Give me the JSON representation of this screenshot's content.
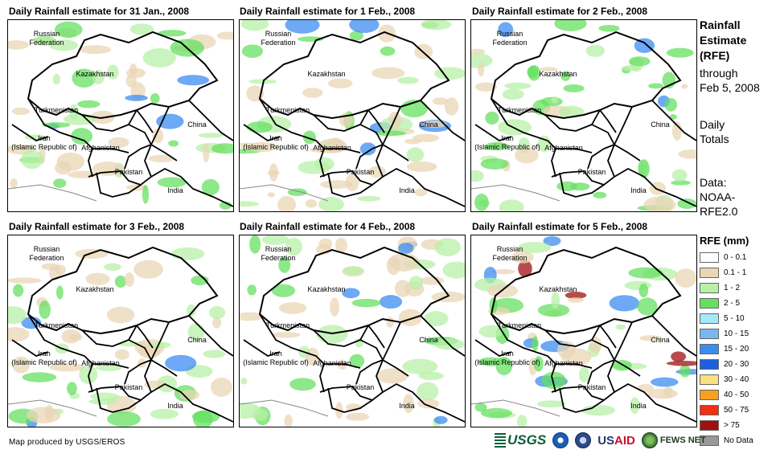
{
  "panels": [
    {
      "title": "Daily Rainfall estimate for 31 Jan., 2008",
      "rain": {
        "light": 0.35,
        "moderate": 0.25,
        "heavy": 0.05,
        "extreme": 0
      }
    },
    {
      "title": "Daily Rainfall estimate for 1 Feb., 2008",
      "rain": {
        "light": 0.3,
        "moderate": 0.2,
        "heavy": 0.05,
        "extreme": 0
      }
    },
    {
      "title": "Daily Rainfall estimate for 2 Feb., 2008",
      "rain": {
        "light": 0.4,
        "moderate": 0.35,
        "heavy": 0.08,
        "extreme": 0
      }
    },
    {
      "title": "Daily Rainfall estimate for 3 Feb., 2008",
      "rain": {
        "light": 0.25,
        "moderate": 0.2,
        "heavy": 0.08,
        "extreme": 0
      }
    },
    {
      "title": "Daily Rainfall estimate for 4 Feb., 2008",
      "rain": {
        "light": 0.3,
        "moderate": 0.15,
        "heavy": 0.06,
        "extreme": 0
      }
    },
    {
      "title": "Daily Rainfall estimate for 5 Feb., 2008",
      "rain": {
        "light": 0.3,
        "moderate": 0.2,
        "heavy": 0.15,
        "extreme": 0.03
      }
    }
  ],
  "countries": [
    "Russian Federation",
    "Kazakhstan",
    "Turkmenistan",
    "China",
    "Iran (Islamic Republic of)",
    "Afghanistan",
    "Pakistan",
    "India"
  ],
  "side_info": {
    "line1": "Rainfall",
    "line2": "Estimate",
    "line3": "(RFE)",
    "line4": "through",
    "line5": "Feb 5, 2008",
    "daily1": "Daily",
    "daily2": "Totals",
    "data1": "Data:",
    "data2": "NOAA-",
    "data3": "RFE2.0"
  },
  "legend": {
    "title": "RFE (mm)",
    "items": [
      {
        "label": "0 - 0.1",
        "color": "#ffffff"
      },
      {
        "label": "0.1 - 1",
        "color": "#e9d6b6"
      },
      {
        "label": "1 - 2",
        "color": "#b8f0a8"
      },
      {
        "label": "2 - 5",
        "color": "#66e060"
      },
      {
        "label": "5 - 10",
        "color": "#a6e8f8"
      },
      {
        "label": "10 - 15",
        "color": "#78b8f0"
      },
      {
        "label": "15 - 20",
        "color": "#3c8cf0"
      },
      {
        "label": "20 - 30",
        "color": "#1e5ee0"
      },
      {
        "label": "30 - 40",
        "color": "#f8e080"
      },
      {
        "label": "40 - 50",
        "color": "#f8a020"
      },
      {
        "label": "50 - 75",
        "color": "#f03010"
      },
      {
        "label": "> 75",
        "color": "#a01010"
      },
      {
        "label": "No Data",
        "color": "#999999"
      }
    ]
  },
  "credit": "Map produced by USGS/EROS",
  "logos": {
    "usgs": "USGS",
    "usaid_us": "US",
    "usaid_aid": "AID",
    "fews": "FEWS NET"
  }
}
